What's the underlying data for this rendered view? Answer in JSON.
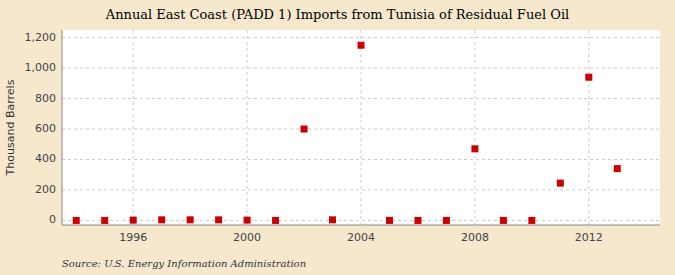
{
  "chart_data": {
    "type": "scatter",
    "title": "Annual East Coast (PADD 1) Imports from Tunisia of Residual Fuel Oil",
    "ylabel": "Thousand Barrels",
    "annotations": [
      "Source: U.S. Energy Information Administration"
    ],
    "x": [
      1994,
      1995,
      1996,
      1997,
      1998,
      1999,
      2000,
      2001,
      2002,
      2003,
      2004,
      2005,
      2006,
      2007,
      2008,
      2009,
      2010,
      2011,
      2012,
      2013
    ],
    "values": [
      0,
      0,
      2,
      4,
      4,
      4,
      2,
      0,
      600,
      4,
      1150,
      0,
      0,
      0,
      470,
      0,
      0,
      245,
      940,
      340
    ],
    "color": "#cc0000",
    "marker": "square",
    "xlim": [
      1993.5,
      2014.5
    ],
    "xticks": [
      1996,
      2000,
      2004,
      2008,
      2012
    ],
    "ylim": [
      -30,
      1250
    ],
    "yticks": [
      0,
      200,
      400,
      600,
      800,
      {
        "value": 1000,
        "label": "1,000"
      },
      {
        "value": 1200,
        "label": "1,200"
      }
    ],
    "grid": true
  }
}
